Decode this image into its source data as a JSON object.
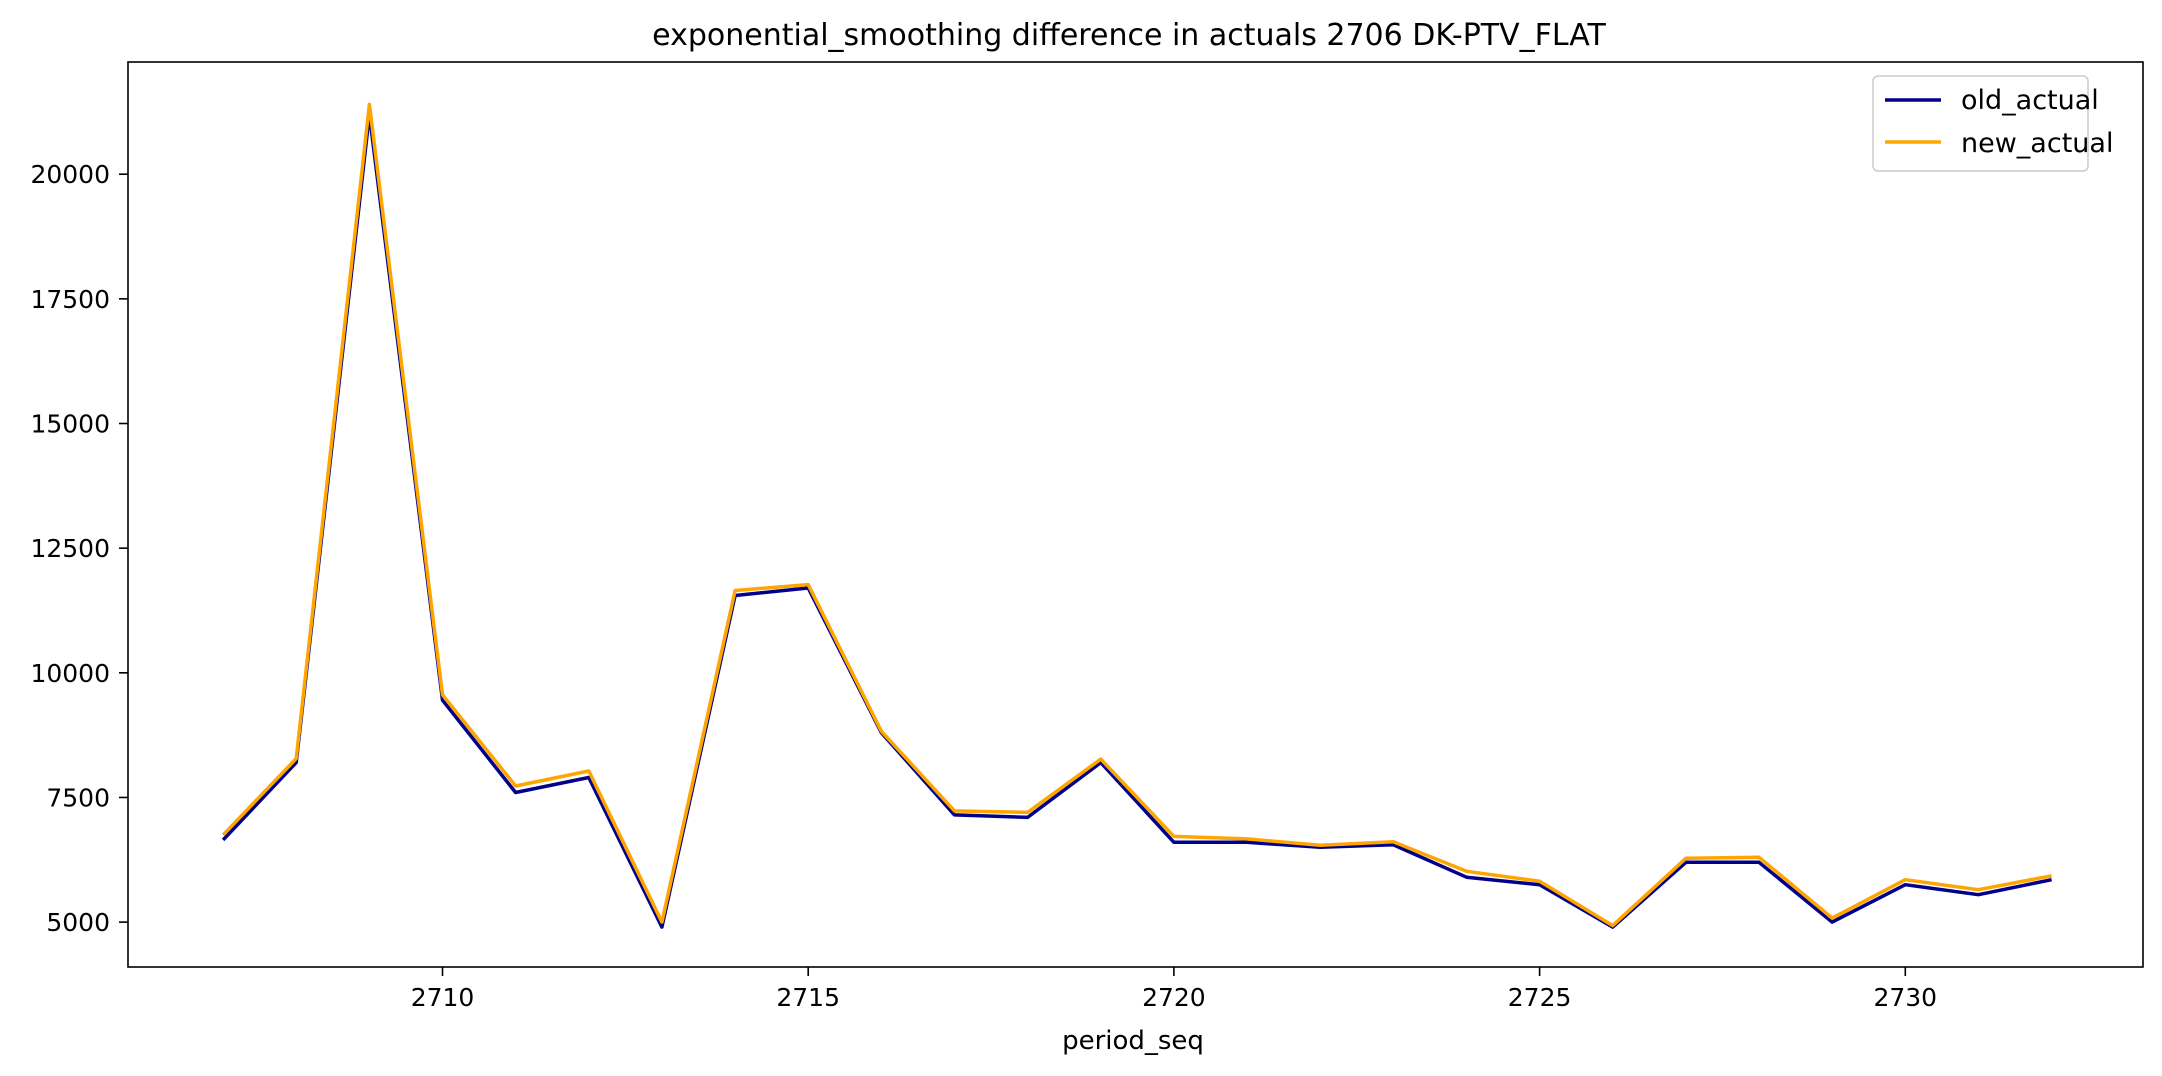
{
  "chart_data": {
    "type": "line",
    "title": "exponential_smoothing difference in actuals 2706 DK-PTV_FLAT",
    "xlabel": "period_seq",
    "ylabel": "",
    "xlim": [
      2705.7,
      2733.25
    ],
    "ylim": [
      4100,
      22250
    ],
    "x_ticks": [
      2710,
      2715,
      2720,
      2725,
      2730
    ],
    "y_ticks": [
      5000,
      7500,
      10000,
      12500,
      15000,
      17500,
      20000
    ],
    "grid": false,
    "legend_position": "top-right",
    "x": [
      2707,
      2708,
      2709,
      2710,
      2711,
      2712,
      2713,
      2714,
      2715,
      2716,
      2717,
      2718,
      2719,
      2720,
      2721,
      2722,
      2723,
      2724,
      2725,
      2726,
      2727,
      2728,
      2729,
      2730,
      2731,
      2732
    ],
    "series": [
      {
        "name": "old_actual",
        "color": "#00008b",
        "values": [
          6650,
          8200,
          21200,
          9450,
          7600,
          7900,
          4900,
          11550,
          11700,
          8800,
          7150,
          7100,
          8200,
          6600,
          6600,
          6500,
          6550,
          5900,
          5750,
          4900,
          6200,
          6200,
          5000,
          5750,
          5550,
          5850
        ]
      },
      {
        "name": "new_actual",
        "color": "#ffa500",
        "values": [
          6750,
          8280,
          21400,
          9560,
          7730,
          8030,
          5000,
          11650,
          11770,
          8830,
          7230,
          7200,
          8270,
          6720,
          6670,
          6540,
          6610,
          6020,
          5820,
          4930,
          6280,
          6300,
          5080,
          5850,
          5650,
          5930
        ]
      }
    ]
  }
}
